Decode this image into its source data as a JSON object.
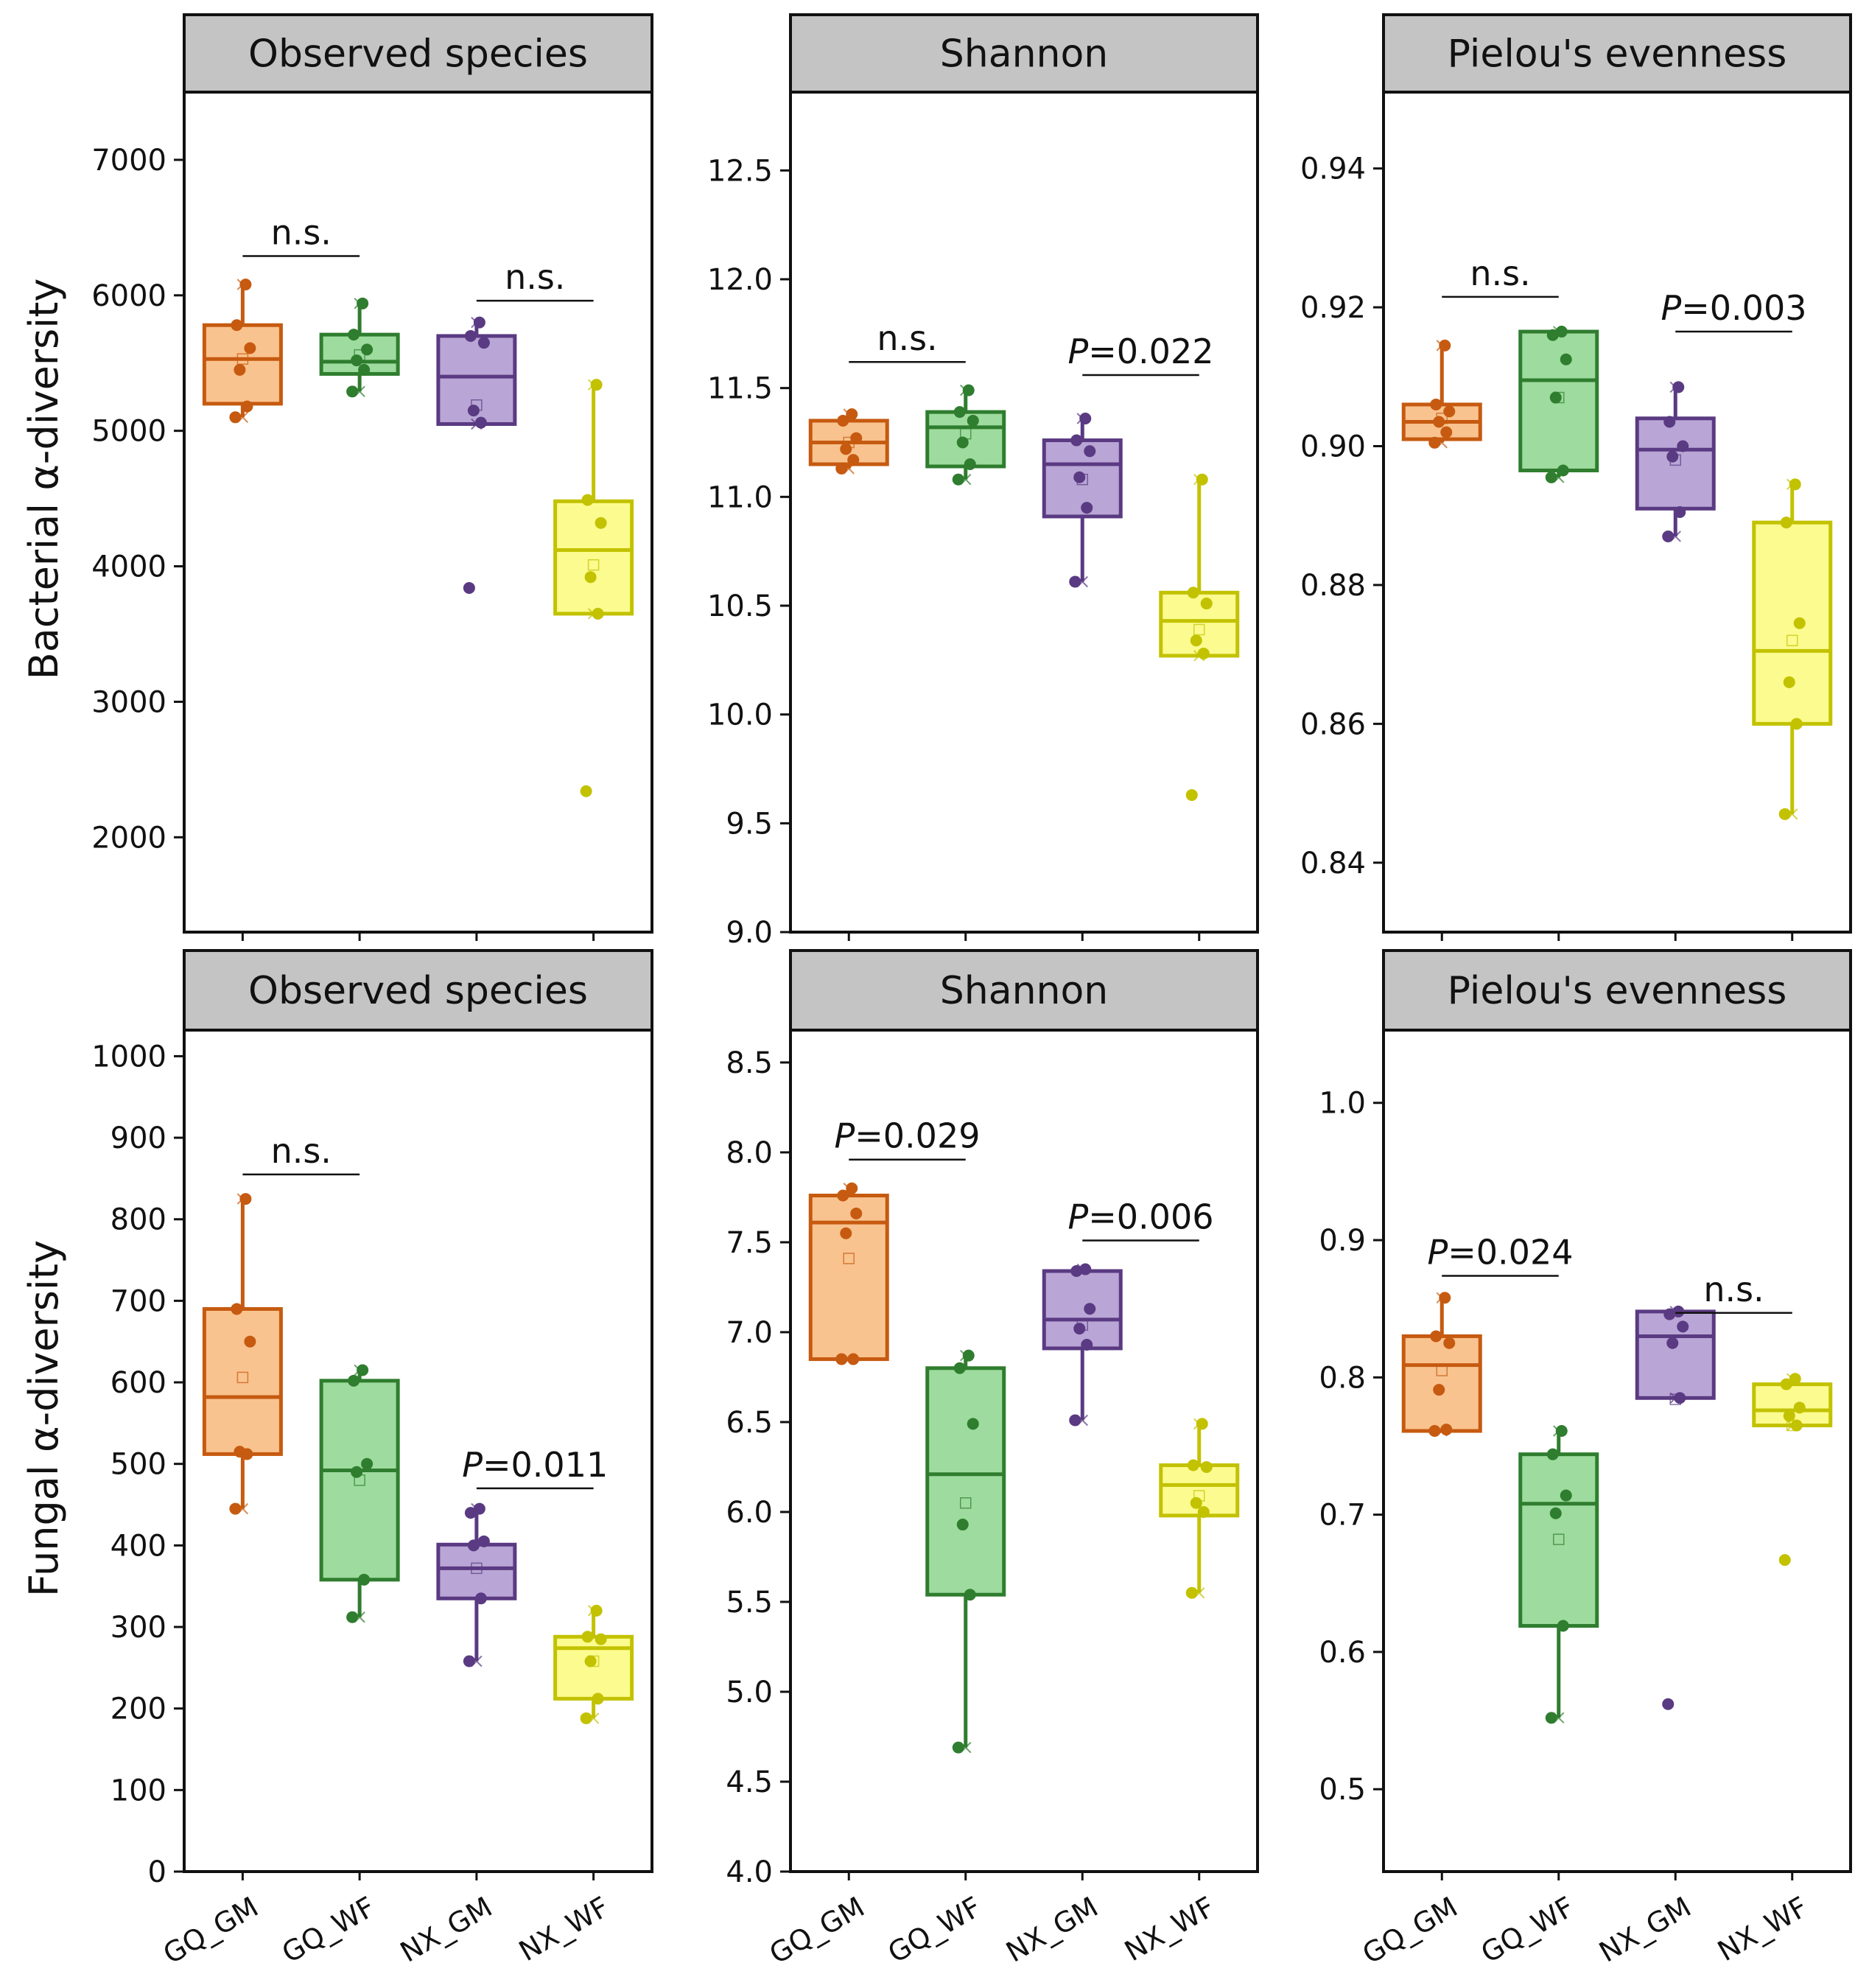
{
  "rows": [
    {
      "label": "Bacterial α-diversity"
    },
    {
      "label": "Fungal α-diversity"
    }
  ],
  "categories": [
    "GQ_GM",
    "GQ_WF",
    "NX_GM",
    "NX_WF"
  ],
  "group_colors": {
    "GQ_GM": {
      "stroke": "#c65a10",
      "fill": "#f9c38f"
    },
    "GQ_WF": {
      "stroke": "#2f7d2f",
      "fill": "#9edb9e"
    },
    "NX_GM": {
      "stroke": "#5a3a82",
      "fill": "#b9a6d6"
    },
    "NX_WF": {
      "stroke": "#c2c200",
      "fill": "#fbfb8f"
    }
  },
  "chart_data": [
    {
      "type": "box",
      "row": 0,
      "col": 0,
      "title": "Observed species",
      "ylim": [
        1300,
        7500
      ],
      "yticks": [
        "2000",
        "3000",
        "4000",
        "5000",
        "6000",
        "7000"
      ],
      "xticks_shown": false,
      "boxes": [
        {
          "group": "GQ_GM",
          "q1": 5200,
          "median": 5530,
          "q3": 5780,
          "whisker_low": 5100,
          "whisker_high": 6080,
          "mean": 5530,
          "points": [
            5100,
            5180,
            5450,
            5610,
            5780,
            6080
          ]
        },
        {
          "group": "GQ_WF",
          "q1": 5420,
          "median": 5510,
          "q3": 5710,
          "whisker_low": 5290,
          "whisker_high": 5940,
          "mean": 5560,
          "points": [
            5290,
            5450,
            5520,
            5600,
            5710,
            5940
          ]
        },
        {
          "group": "NX_GM",
          "q1": 5050,
          "median": 5400,
          "q3": 5700,
          "whisker_low": 5050,
          "whisker_high": 5800,
          "mean": 5190,
          "points": [
            3840,
            5060,
            5150,
            5650,
            5700,
            5800
          ]
        },
        {
          "group": "NX_WF",
          "q1": 3650,
          "median": 4120,
          "q3": 4480,
          "whisker_low": 3650,
          "whisker_high": 5340,
          "mean": 4010,
          "points": [
            2340,
            3650,
            3920,
            4320,
            4490,
            5340
          ]
        }
      ],
      "brackets": [
        {
          "from": "GQ_GM",
          "to": "GQ_WF",
          "level": 6290,
          "label": "n.s."
        },
        {
          "from": "NX_GM",
          "to": "NX_WF",
          "level": 5960,
          "label": "n.s."
        }
      ]
    },
    {
      "type": "box",
      "row": 0,
      "col": 1,
      "title": "Shannon",
      "ylim": [
        9.0,
        12.86
      ],
      "yticks": [
        "9.0",
        "9.5",
        "10.0",
        "10.5",
        "11.0",
        "11.5",
        "12.0",
        "12.5"
      ],
      "xticks_shown": false,
      "boxes": [
        {
          "group": "GQ_GM",
          "q1": 11.15,
          "median": 11.25,
          "q3": 11.35,
          "whisker_low": 11.13,
          "whisker_high": 11.38,
          "mean": 11.25,
          "points": [
            11.13,
            11.17,
            11.22,
            11.27,
            11.35,
            11.38
          ]
        },
        {
          "group": "GQ_WF",
          "q1": 11.14,
          "median": 11.32,
          "q3": 11.39,
          "whisker_low": 11.08,
          "whisker_high": 11.49,
          "mean": 11.29,
          "points": [
            11.08,
            11.15,
            11.25,
            11.35,
            11.39,
            11.49
          ]
        },
        {
          "group": "NX_GM",
          "q1": 10.91,
          "median": 11.15,
          "q3": 11.26,
          "whisker_low": 10.61,
          "whisker_high": 11.36,
          "mean": 11.08,
          "points": [
            10.61,
            10.95,
            11.09,
            11.21,
            11.26,
            11.36
          ]
        },
        {
          "group": "NX_WF",
          "q1": 10.27,
          "median": 10.43,
          "q3": 10.56,
          "whisker_low": 10.27,
          "whisker_high": 11.08,
          "mean": 10.39,
          "points": [
            9.63,
            10.28,
            10.34,
            10.51,
            10.56,
            11.08
          ]
        }
      ],
      "brackets": [
        {
          "from": "GQ_GM",
          "to": "GQ_WF",
          "level": 11.62,
          "label": "n.s."
        },
        {
          "from": "NX_GM",
          "to": "NX_WF",
          "level": 11.56,
          "label": "P=0.022"
        }
      ]
    },
    {
      "type": "box",
      "row": 0,
      "col": 2,
      "title": "Pielou's evenness",
      "ylim": [
        0.83,
        0.951
      ],
      "yticks": [
        "0.84",
        "0.86",
        "0.88",
        "0.90",
        "0.92",
        "0.94"
      ],
      "xticks_shown": false,
      "boxes": [
        {
          "group": "GQ_GM",
          "q1": 0.901,
          "median": 0.9035,
          "q3": 0.906,
          "whisker_low": 0.9005,
          "whisker_high": 0.9145,
          "mean": 0.904,
          "points": [
            0.9005,
            0.902,
            0.9035,
            0.905,
            0.906,
            0.9145
          ]
        },
        {
          "group": "GQ_WF",
          "q1": 0.8965,
          "median": 0.9095,
          "q3": 0.9165,
          "whisker_low": 0.8955,
          "whisker_high": 0.9165,
          "mean": 0.907,
          "points": [
            0.8955,
            0.8965,
            0.907,
            0.9125,
            0.916,
            0.9165
          ]
        },
        {
          "group": "NX_GM",
          "q1": 0.891,
          "median": 0.8995,
          "q3": 0.904,
          "whisker_low": 0.887,
          "whisker_high": 0.9085,
          "mean": 0.898,
          "points": [
            0.887,
            0.8905,
            0.8985,
            0.9,
            0.9035,
            0.9085
          ]
        },
        {
          "group": "NX_WF",
          "q1": 0.86,
          "median": 0.8705,
          "q3": 0.889,
          "whisker_low": 0.847,
          "whisker_high": 0.8945,
          "mean": 0.872,
          "points": [
            0.847,
            0.86,
            0.866,
            0.8745,
            0.889,
            0.8945
          ]
        }
      ],
      "brackets": [
        {
          "from": "GQ_GM",
          "to": "GQ_WF",
          "level": 0.9215,
          "label": "n.s."
        },
        {
          "from": "NX_GM",
          "to": "NX_WF",
          "level": 0.9165,
          "label": "P=0.003"
        }
      ]
    },
    {
      "type": "box",
      "row": 1,
      "col": 0,
      "title": "Observed species",
      "ylim": [
        0,
        1032
      ],
      "yticks": [
        "0",
        "100",
        "200",
        "300",
        "400",
        "500",
        "600",
        "700",
        "800",
        "900",
        "1000"
      ],
      "xticks_shown": true,
      "boxes": [
        {
          "group": "GQ_GM",
          "q1": 512,
          "median": 582,
          "q3": 690,
          "whisker_low": 445,
          "whisker_high": 825,
          "mean": 606,
          "points": [
            445,
            512,
            515,
            650,
            690,
            825
          ]
        },
        {
          "group": "GQ_WF",
          "q1": 358,
          "median": 492,
          "q3": 602,
          "whisker_low": 312,
          "whisker_high": 615,
          "mean": 480,
          "points": [
            312,
            358,
            490,
            500,
            602,
            615
          ]
        },
        {
          "group": "NX_GM",
          "q1": 335,
          "median": 372,
          "q3": 401,
          "whisker_low": 258,
          "whisker_high": 445,
          "mean": 372,
          "points": [
            258,
            335,
            400,
            405,
            440,
            445
          ]
        },
        {
          "group": "NX_WF",
          "q1": 212,
          "median": 274,
          "q3": 288,
          "whisker_low": 188,
          "whisker_high": 320,
          "mean": 258,
          "points": [
            188,
            212,
            258,
            285,
            288,
            320
          ]
        }
      ],
      "brackets": [
        {
          "from": "GQ_GM",
          "to": "GQ_WF",
          "level": 855,
          "label": "n.s."
        },
        {
          "from": "NX_GM",
          "to": "NX_WF",
          "level": 470,
          "label": "P=0.011"
        }
      ]
    },
    {
      "type": "box",
      "row": 1,
      "col": 1,
      "title": "Shannon",
      "ylim": [
        4.0,
        8.68
      ],
      "yticks": [
        "4.0",
        "4.5",
        "5.0",
        "5.5",
        "6.0",
        "6.5",
        "7.0",
        "7.5",
        "8.0",
        "8.5"
      ],
      "xticks_shown": true,
      "boxes": [
        {
          "group": "GQ_GM",
          "q1": 6.85,
          "median": 7.61,
          "q3": 7.76,
          "whisker_low": 6.85,
          "whisker_high": 7.8,
          "mean": 7.41,
          "points": [
            6.85,
            6.85,
            7.55,
            7.66,
            7.76,
            7.8
          ]
        },
        {
          "group": "GQ_WF",
          "q1": 5.54,
          "median": 6.21,
          "q3": 6.8,
          "whisker_low": 4.69,
          "whisker_high": 6.87,
          "mean": 6.05,
          "points": [
            4.69,
            5.54,
            5.93,
            6.49,
            6.8,
            6.87
          ]
        },
        {
          "group": "NX_GM",
          "q1": 6.91,
          "median": 7.07,
          "q3": 7.34,
          "whisker_low": 6.51,
          "whisker_high": 7.35,
          "mean": 7.04,
          "points": [
            6.51,
            6.93,
            7.02,
            7.13,
            7.34,
            7.35
          ]
        },
        {
          "group": "NX_WF",
          "q1": 5.98,
          "median": 6.15,
          "q3": 6.26,
          "whisker_low": 5.55,
          "whisker_high": 6.49,
          "mean": 6.09,
          "points": [
            5.55,
            6.0,
            6.05,
            6.25,
            6.26,
            6.49
          ]
        }
      ],
      "brackets": [
        {
          "from": "GQ_GM",
          "to": "GQ_WF",
          "level": 7.96,
          "label": "P=0.029"
        },
        {
          "from": "NX_GM",
          "to": "NX_WF",
          "level": 7.51,
          "label": "P=0.006"
        }
      ]
    },
    {
      "type": "box",
      "row": 1,
      "col": 2,
      "title": "Pielou's evenness",
      "ylim": [
        0.44,
        1.053
      ],
      "yticks": [
        "0.5",
        "0.6",
        "0.7",
        "0.8",
        "0.9",
        "1.0"
      ],
      "xticks_shown": true,
      "boxes": [
        {
          "group": "GQ_GM",
          "q1": 0.761,
          "median": 0.809,
          "q3": 0.83,
          "whisker_low": 0.761,
          "whisker_high": 0.858,
          "mean": 0.805,
          "points": [
            0.761,
            0.762,
            0.791,
            0.825,
            0.83,
            0.858
          ]
        },
        {
          "group": "GQ_WF",
          "q1": 0.619,
          "median": 0.708,
          "q3": 0.744,
          "whisker_low": 0.552,
          "whisker_high": 0.761,
          "mean": 0.682,
          "points": [
            0.552,
            0.619,
            0.701,
            0.714,
            0.744,
            0.761
          ]
        },
        {
          "group": "NX_GM",
          "q1": 0.785,
          "median": 0.83,
          "q3": 0.848,
          "whisker_low": 0.785,
          "whisker_high": 0.848,
          "mean": 0.784,
          "points": [
            0.562,
            0.785,
            0.825,
            0.837,
            0.846,
            0.848
          ]
        },
        {
          "group": "NX_WF",
          "q1": 0.765,
          "median": 0.776,
          "q3": 0.795,
          "whisker_low": 0.765,
          "whisker_high": 0.799,
          "mean": 0.765,
          "points": [
            0.667,
            0.765,
            0.772,
            0.778,
            0.795,
            0.799
          ]
        }
      ],
      "brackets": [
        {
          "from": "GQ_GM",
          "to": "GQ_WF",
          "level": 0.874,
          "label": "P=0.024"
        },
        {
          "from": "NX_GM",
          "to": "NX_WF",
          "level": 0.847,
          "label": "n.s."
        }
      ]
    }
  ]
}
